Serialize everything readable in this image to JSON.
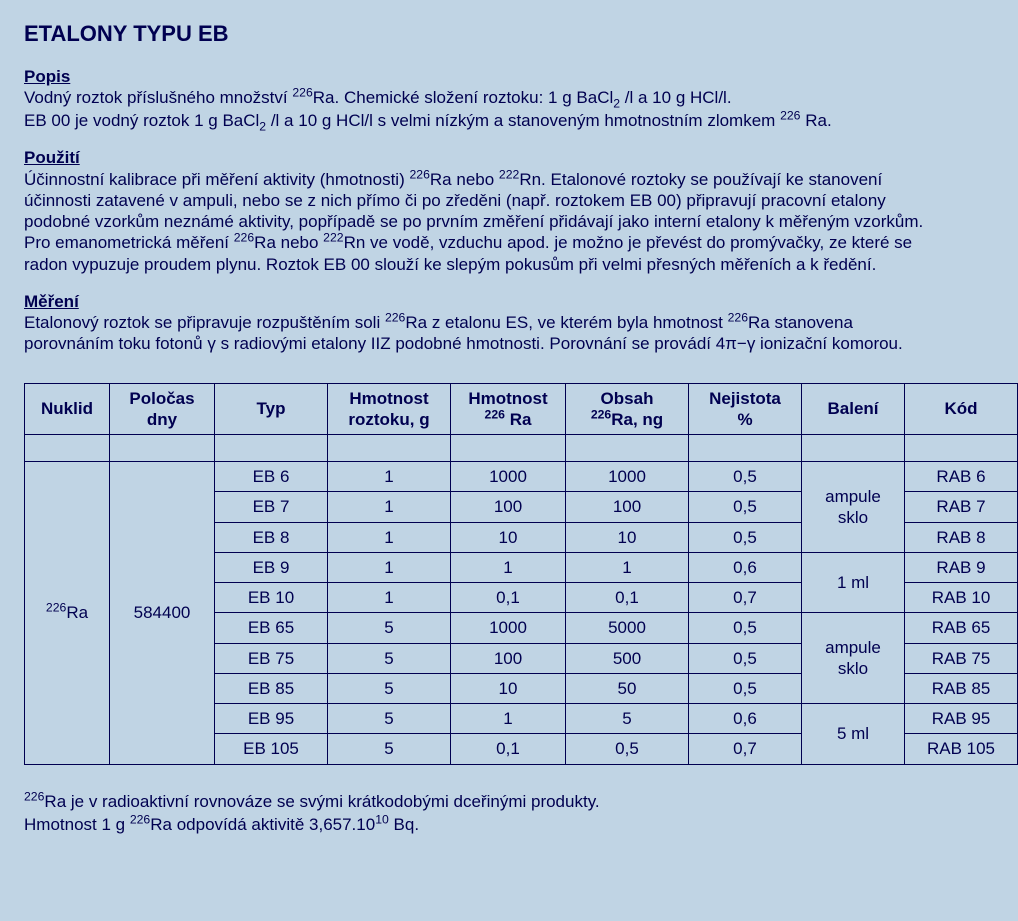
{
  "colors": {
    "background": "#c0d4e4",
    "text": "#000050",
    "border": "#000050"
  },
  "title": "ETALONY TYPU EB",
  "sections": {
    "popis": {
      "head": "Popis",
      "line1a": "Vodný roztok příslušného množství ",
      "line1b": "Ra. Chemické složení roztoku: 1 g BaCl",
      "line1c": " /l a 10 g HCl/l.",
      "line2a": "EB 00 je vodný roztok 1 g BaCl",
      "line2b": " /l a 10 g HCl/l s velmi nízkým a stanoveným hmotnostním zlomkem ",
      "line2c": " Ra."
    },
    "pouziti": {
      "head": "Použití",
      "p1a": "Účinnostní kalibrace při měření aktivity (hmotnosti) ",
      "p1b": "Ra nebo ",
      "p1c": "Rn. Etalonové roztoky se používají ke stanovení účinnosti zatavené v ampuli, nebo se z nich přímo či po zředěni (např. roztokem EB 00) připravují pracovní etalony podobné vzorkům neznámé aktivity, popřípadě se po prvním změření přidávají jako interní etalony k měřeným vzorkům. Pro emanometrická měření ",
      "p1d": "Ra nebo ",
      "p1e": "Rn ve vodě, vzduchu apod. je možno je převést do promývačky, ze které se radon vypuzuje proudem plynu. Roztok EB 00 slouží ke slepým pokusům při velmi přesných měřeních a k ředění."
    },
    "mereni": {
      "head": "Měření",
      "p1a": "Etalonový roztok se připravuje rozpuštěním soli ",
      "p1b": "Ra z etalonu ES, ve kterém byla hmotnost ",
      "p1c": "Ra stanovena porovnáním toku fotonů γ s radiovými etalony IIZ podobné hmotnosti. Porovnání se provádí 4π−γ  ionizační komorou."
    }
  },
  "table": {
    "headers": {
      "nuklid": "Nuklid",
      "polocas1": "Poločas",
      "polocas2": "dny",
      "typ": "Typ",
      "hmroz1": "Hmotnost",
      "hmroz2": "roztoku,  g",
      "hmra1": "Hmotnost",
      "hmra2": " Ra",
      "obsah1": "Obsah",
      "obsah2": "Ra, ng",
      "nej1": "Nejistota",
      "nej2": "%",
      "baleni": "Balení",
      "kod": "Kód"
    },
    "nuklid_sup": "226",
    "nuklid_label": "Ra",
    "polocas_val": "584400",
    "baleni_a": "ampule sklo",
    "baleni_b": "1 ml",
    "baleni_c": "ampule sklo",
    "baleni_d": "5 ml",
    "rows": [
      {
        "typ": "EB 6",
        "roz": "1",
        "hmra": "1000",
        "obsah": "1000",
        "nej": "0,5",
        "kod": "RAB 6"
      },
      {
        "typ": "EB 7",
        "roz": "1",
        "hmra": "100",
        "obsah": "100",
        "nej": "0,5",
        "kod": "RAB 7"
      },
      {
        "typ": "EB 8",
        "roz": "1",
        "hmra": "10",
        "obsah": "10",
        "nej": "0,5",
        "kod": "RAB 8"
      },
      {
        "typ": "EB 9",
        "roz": "1",
        "hmra": "1",
        "obsah": "1",
        "nej": "0,6",
        "kod": "RAB 9"
      },
      {
        "typ": "EB 10",
        "roz": "1",
        "hmra": "0,1",
        "obsah": "0,1",
        "nej": "0,7",
        "kod": "RAB 10"
      },
      {
        "typ": "EB 65",
        "roz": "5",
        "hmra": "1000",
        "obsah": "5000",
        "nej": "0,5",
        "kod": "RAB 65"
      },
      {
        "typ": "EB 75",
        "roz": "5",
        "hmra": "100",
        "obsah": "500",
        "nej": "0,5",
        "kod": "RAB 75"
      },
      {
        "typ": "EB 85",
        "roz": "5",
        "hmra": "10",
        "obsah": "50",
        "nej": "0,5",
        "kod": "RAB 85"
      },
      {
        "typ": "EB 95",
        "roz": "5",
        "hmra": "1",
        "obsah": "5",
        "nej": "0,6",
        "kod": "RAB 95"
      },
      {
        "typ": "EB 105",
        "roz": "5",
        "hmra": "0,1",
        "obsah": "0,5",
        "nej": "0,7",
        "kod": "RAB 105"
      }
    ]
  },
  "footnote": {
    "l1a": "Ra je v radioaktivní rovnováze se svými krátkodobými dceřinými produkty.",
    "l2a": "Hmotnost 1 g ",
    "l2b": "Ra odpovídá aktivitě  3,657.10",
    "l2c": " Bq."
  },
  "sup": {
    "s226": "226",
    "s222": "222",
    "s10": "10"
  },
  "sub": {
    "s2": "2"
  }
}
